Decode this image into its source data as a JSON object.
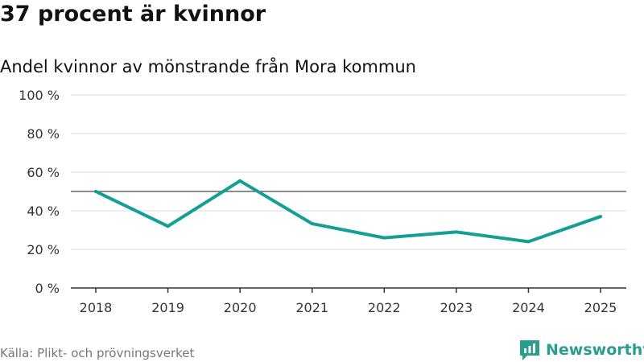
{
  "title": "37 procent är kvinnor",
  "subtitle": "Andel kvinnor av mönstrande från Mora kommun",
  "source": "Källa: Plikt- och prövningsverket",
  "brand": {
    "name": "Newsworthy",
    "icon": "newsworthy-logo-icon",
    "color": "#2a9d8f"
  },
  "colors": {
    "line": "#139f95",
    "reference": "#666666",
    "grid": "#dddddd",
    "axis": "#333333"
  },
  "chart_data": {
    "type": "line",
    "title": "Andel kvinnor av mönstrande från Mora kommun",
    "xlabel": "",
    "ylabel": "",
    "categories": [
      "2018",
      "2019",
      "2020",
      "2021",
      "2022",
      "2023",
      "2024",
      "2025"
    ],
    "series": [
      {
        "name": "Andel kvinnor",
        "values": [
          50,
          32,
          55.5,
          33.3,
          26,
          29,
          24,
          37
        ]
      }
    ],
    "reference_line": 50,
    "ylim": [
      0,
      100
    ],
    "yticks": [
      0,
      20,
      40,
      60,
      80,
      100
    ],
    "ytick_labels": [
      "0 %",
      "20 %",
      "40 %",
      "60 %",
      "80 %",
      "100 %"
    ],
    "grid": true
  }
}
